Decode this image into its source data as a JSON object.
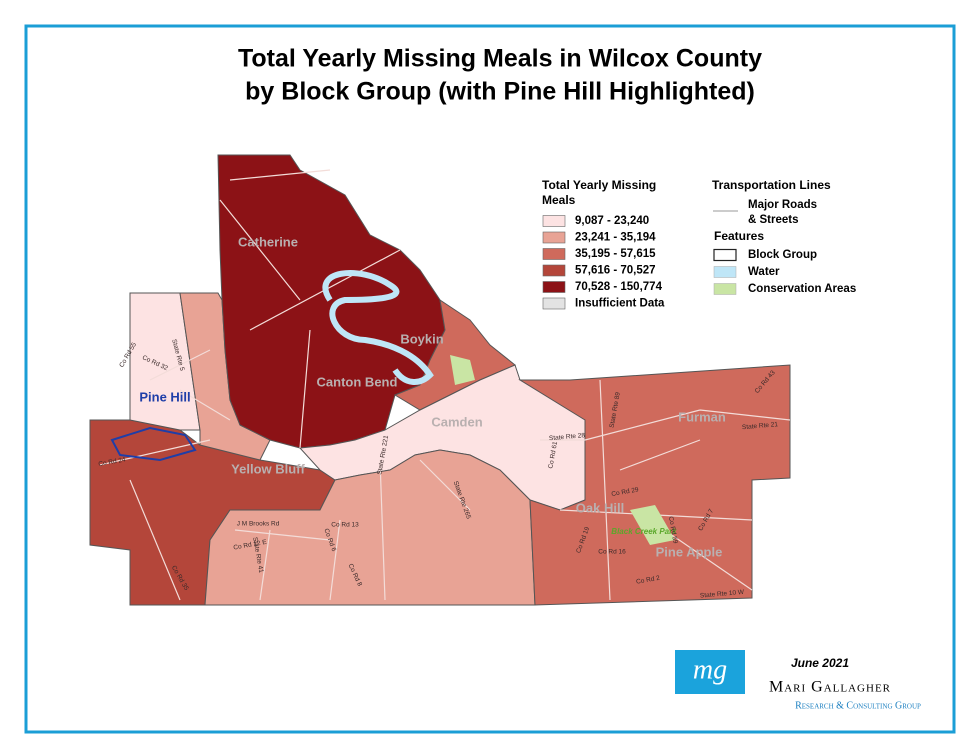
{
  "title": [
    "Total Yearly Missing Meals in Wilcox County",
    "by Block Group (with Pine Hill Highlighted)"
  ],
  "legend": {
    "title": [
      "Total Yearly Missing",
      "Meals"
    ],
    "classes": [
      {
        "label": "9,087 - 23,240",
        "color": "#fde3e3"
      },
      {
        "label": "23,241 - 35,194",
        "color": "#e8a395"
      },
      {
        "label": "35,195 - 57,615",
        "color": "#cf6a5c"
      },
      {
        "label": "57,616 - 70,527",
        "color": "#b4463a"
      },
      {
        "label": "70,528 - 150,774",
        "color": "#8c1216"
      }
    ],
    "insufficient": {
      "label": "Insufficient Data",
      "color": "#e3e3e3"
    }
  },
  "transport": {
    "title": "Transportation Lines",
    "items": [
      "Major Roads",
      "& Streets"
    ]
  },
  "features": {
    "title": "Features",
    "items": [
      {
        "label": "Block Group",
        "color": "#ffffff"
      },
      {
        "label": "Water",
        "color": "#bfe6f7"
      },
      {
        "label": "Conservation Areas",
        "color": "#c9e5a4"
      }
    ]
  },
  "places": [
    "Catherine",
    "Boykin",
    "Canton Bend",
    "Camden",
    "Yellow Bluff",
    "Furman",
    "Oak Hill",
    "Pine Apple",
    "Pine Hill",
    "Black Creek Park"
  ],
  "roads": [
    "Co Rd 55",
    "Co Rd 32",
    "State Rte 5",
    "Co Rd 24",
    "State Rte 28",
    "Co Rd 61",
    "State Rte 221",
    "State Rte 265",
    "J M Brooks Rd",
    "Co Rd 13",
    "Co Rd 12 E",
    "Co Rd 6",
    "State Rte 41",
    "Co Rd 8",
    "Co Rd 35",
    "Co Rd 29",
    "Co Rd 19",
    "Co Rd 16",
    "Co Rd 2",
    "State Rte 10 W",
    "State Rte 21",
    "State Rte 89",
    "Co Rd 43",
    "Co Rd 59",
    "Co Rd 7"
  ],
  "footer": {
    "logo": "mg",
    "date": "June 2021",
    "org": "Mari Gallagher",
    "sub": "Research & Consulting Group"
  }
}
